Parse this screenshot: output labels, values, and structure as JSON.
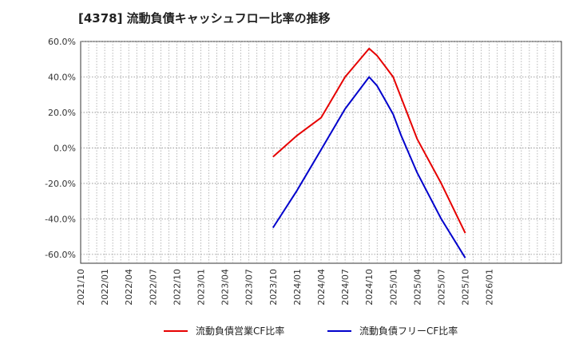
{
  "chart_data": {
    "type": "line",
    "title": "[4378]  流動負債キャッシュフロー比率の推移",
    "xlabel": "",
    "ylabel": "",
    "ylim": [
      -65,
      60
    ],
    "yticks": [
      60,
      40,
      20,
      0,
      -20,
      -40,
      -60
    ],
    "ytick_labels": [
      "60.0%",
      "40.0%",
      "20.0%",
      "0.0%",
      "-20.0%",
      "-40.0%",
      "-60.0%"
    ],
    "xlim_months": [
      0,
      60
    ],
    "xtick_labels": [
      "2021/10",
      "2022/01",
      "2022/04",
      "2022/07",
      "2022/10",
      "2023/01",
      "2023/04",
      "2023/07",
      "2023/10",
      "2024/01",
      "2024/04",
      "2024/07",
      "2024/10",
      "2025/01",
      "2025/04",
      "2025/07",
      "2025/10",
      "2026/01"
    ],
    "grid": true,
    "legend_position": "bottom",
    "series": [
      {
        "name": "流動負債営業CF比率",
        "color": "#e60000",
        "x": [
          24,
          27,
          30,
          33,
          36,
          37,
          38,
          39,
          42,
          45,
          48
        ],
        "y": [
          -5,
          7,
          17,
          40,
          56,
          52,
          46,
          40,
          5,
          -20,
          -48
        ]
      },
      {
        "name": "流動負債フリーCF比率",
        "color": "#0000cc",
        "x": [
          24,
          27,
          30,
          33,
          36,
          37,
          38,
          39,
          40,
          42,
          45,
          48
        ],
        "y": [
          -45,
          -24,
          -1,
          22,
          40,
          35,
          27,
          19,
          7,
          -14,
          -40,
          -62
        ]
      }
    ]
  }
}
